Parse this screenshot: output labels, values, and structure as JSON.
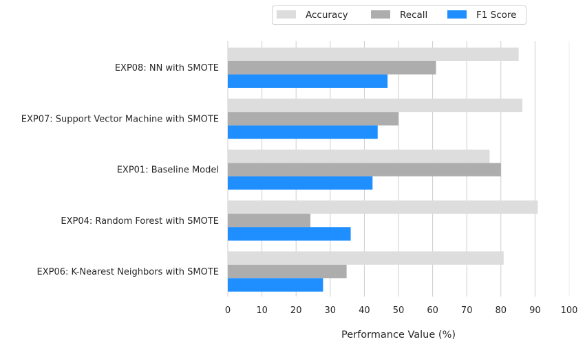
{
  "chart_data": {
    "type": "bar",
    "orientation": "horizontal",
    "categories": [
      "EXP08: NN with SMOTE",
      "EXP07: Support Vector Machine with SMOTE",
      "EXP01: Baseline Model",
      "EXP04: Random Forest with SMOTE",
      "EXP06: K-Nearest Neighbors with SMOTE"
    ],
    "series": [
      {
        "name": "Accuracy",
        "color": "#dddddd",
        "values": [
          85.2,
          86.3,
          76.7,
          90.8,
          80.8
        ]
      },
      {
        "name": "Recall",
        "color": "#adadad",
        "values": [
          61.0,
          50.0,
          80.0,
          24.2,
          34.8
        ]
      },
      {
        "name": "F1 Score",
        "color": "#1f8fff",
        "values": [
          46.8,
          43.9,
          42.4,
          36.0,
          27.9
        ]
      }
    ],
    "xlabel": "Performance Value (%)",
    "xlim": [
      0,
      100
    ],
    "xticks": [
      "0",
      "10",
      "20",
      "30",
      "40",
      "50",
      "60",
      "70",
      "80",
      "90",
      "100"
    ],
    "grid": "vertical",
    "legend_placement": "top-right"
  }
}
